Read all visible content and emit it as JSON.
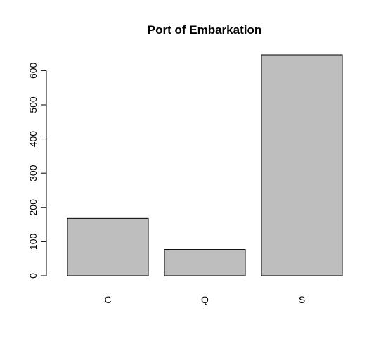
{
  "chart_data": {
    "type": "bar",
    "title": "Port of Embarkation",
    "xlabel": "",
    "ylabel": "",
    "categories": [
      "C",
      "Q",
      "S"
    ],
    "values": [
      168,
      77,
      646
    ],
    "ylim": [
      0,
      646
    ],
    "yticks": [
      0,
      100,
      200,
      300,
      400,
      500,
      600
    ],
    "ytick_labels": [
      "0",
      "100",
      "200",
      "300",
      "400",
      "500",
      "600"
    ],
    "grid": false,
    "legend": "none",
    "bar_fill": "#bebebe",
    "bar_stroke": "#000000"
  }
}
